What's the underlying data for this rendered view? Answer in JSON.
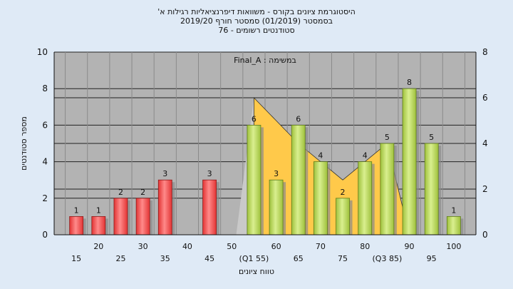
{
  "titles": {
    "line1": "היסטוגרמת ציונים בקורס - משוואות דיפרנציאליות רגילות א'",
    "line2": "בסמסטר  (01/2019)  סמסטר חורף  2019/20",
    "line3": "סטודנטים רשומים - 76"
  },
  "colors": {
    "plot_bg": "#b3b3b3",
    "fail_bar": "#e23434",
    "pass_bar": "#9fc13c",
    "area_fill": "#ffc94a",
    "page_bg": "#dfeaf6"
  },
  "chart_data": {
    "type": "bar",
    "title": "היסטוגרמת ציונים בקורס - משוואות דיפרנציאליות רגילות א'",
    "xlabel": "טווח ציונים",
    "ylabel": "מספר סטודנטים",
    "annotation": "במשימה : Final_A",
    "ylim": [
      0,
      10
    ],
    "y2lim": [
      0,
      8
    ],
    "yticks": [
      "0",
      "2",
      "4",
      "6",
      "8",
      "10"
    ],
    "y2ticks": [
      "0",
      "2",
      "4",
      "6",
      "8"
    ],
    "grid": true,
    "x_ticks_lower": [
      "15",
      "25",
      "35",
      "45",
      "(Q1 55)",
      "65",
      "75",
      "(Q3 85)",
      "95"
    ],
    "x_ticks_upper": [
      "20",
      "30",
      "40",
      "50",
      "60",
      "70",
      "80",
      "90",
      "100"
    ],
    "categories": [
      "15",
      "20",
      "25",
      "30",
      "35",
      "40",
      "45",
      "50",
      "55",
      "60",
      "65",
      "70",
      "75",
      "80",
      "85",
      "90",
      "95",
      "100"
    ],
    "values": [
      1,
      1,
      2,
      2,
      3,
      0,
      3,
      0,
      6,
      3,
      6,
      4,
      2,
      4,
      5,
      8,
      5,
      1
    ],
    "value_labels": [
      "1",
      "1",
      "2",
      "2",
      "3",
      "",
      "3",
      "",
      "6",
      "3",
      "6",
      "4",
      "2",
      "4",
      "5",
      "8",
      "5",
      "1"
    ],
    "pass_threshold": 55,
    "area_series": [
      {
        "x": "55",
        "y": 6
      },
      {
        "x": "60",
        "y": 5
      },
      {
        "x": "65",
        "y": 4
      },
      {
        "x": "70",
        "y": 3.2
      },
      {
        "x": "75",
        "y": 2.4
      },
      {
        "x": "80",
        "y": 3.2
      },
      {
        "x": "85",
        "y": 4
      },
      {
        "x": "90",
        "y": 0
      }
    ]
  }
}
